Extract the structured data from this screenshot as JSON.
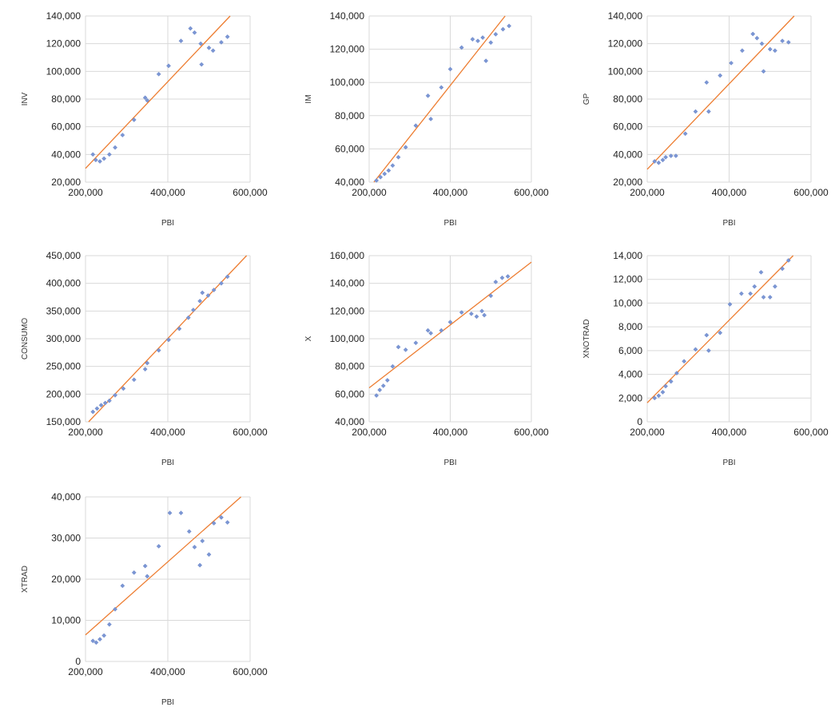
{
  "colors": {
    "points": "#7b96d4",
    "trend": "#ed7d31",
    "grid": "#d9d9d9"
  },
  "chart_data": [
    {
      "type": "scatter",
      "title": "",
      "xlabel": "PBI",
      "ylabel": "INV",
      "xlim": [
        200000,
        600000
      ],
      "ylim": [
        20000,
        140000
      ],
      "xticks": [
        "200,000",
        "400,000",
        "600,000"
      ],
      "yticks": [
        "20,000",
        "40,000",
        "60,000",
        "80,000",
        "100,000",
        "120,000",
        "140,000"
      ],
      "grid": true,
      "trendline": true,
      "points": [
        [
          218000,
          40000
        ],
        [
          225000,
          36000
        ],
        [
          235000,
          35000
        ],
        [
          245000,
          37000
        ],
        [
          258000,
          40000
        ],
        [
          272000,
          45000
        ],
        [
          290000,
          54000
        ],
        [
          318000,
          65000
        ],
        [
          345000,
          81000
        ],
        [
          350000,
          79000
        ],
        [
          378000,
          98000
        ],
        [
          402000,
          104000
        ],
        [
          432000,
          122000
        ],
        [
          455000,
          131000
        ],
        [
          465000,
          128000
        ],
        [
          480000,
          120000
        ],
        [
          482000,
          105000
        ],
        [
          500000,
          117000
        ],
        [
          510000,
          115000
        ],
        [
          530000,
          121000
        ],
        [
          545000,
          125000
        ]
      ]
    },
    {
      "type": "scatter",
      "title": "",
      "xlabel": "PBI",
      "ylabel": "IM",
      "xlim": [
        200000,
        600000
      ],
      "ylim": [
        40000,
        140000
      ],
      "xticks": [
        "200,000",
        "400,000",
        "600,000"
      ],
      "yticks": [
        "40,000",
        "60,000",
        "80,000",
        "100,000",
        "120,000",
        "140,000"
      ],
      "grid": true,
      "trendline": true,
      "points": [
        [
          218000,
          41000
        ],
        [
          228000,
          43000
        ],
        [
          238000,
          45000
        ],
        [
          248000,
          47000
        ],
        [
          258000,
          50000
        ],
        [
          272000,
          55000
        ],
        [
          290000,
          61000
        ],
        [
          315000,
          74000
        ],
        [
          345000,
          92000
        ],
        [
          352000,
          78000
        ],
        [
          378000,
          97000
        ],
        [
          400000,
          108000
        ],
        [
          428000,
          121000
        ],
        [
          455000,
          126000
        ],
        [
          468000,
          125000
        ],
        [
          480000,
          127000
        ],
        [
          488000,
          113000
        ],
        [
          500000,
          124000
        ],
        [
          512000,
          129000
        ],
        [
          530000,
          132000
        ],
        [
          545000,
          134000
        ]
      ]
    },
    {
      "type": "scatter",
      "title": "",
      "xlabel": "PBI",
      "ylabel": "GP",
      "xlim": [
        200000,
        600000
      ],
      "ylim": [
        20000,
        140000
      ],
      "xticks": [
        "200,000",
        "400,000",
        "600,000"
      ],
      "yticks": [
        "20,000",
        "40,000",
        "60,000",
        "80,000",
        "100,000",
        "120,000",
        "140,000"
      ],
      "grid": true,
      "trendline": true,
      "points": [
        [
          218000,
          35000
        ],
        [
          228000,
          34000
        ],
        [
          238000,
          36000
        ],
        [
          245000,
          38000
        ],
        [
          258000,
          39000
        ],
        [
          270000,
          39000
        ],
        [
          293000,
          55000
        ],
        [
          318000,
          71000
        ],
        [
          345000,
          92000
        ],
        [
          350000,
          71000
        ],
        [
          378000,
          97000
        ],
        [
          405000,
          106000
        ],
        [
          432000,
          115000
        ],
        [
          458000,
          127000
        ],
        [
          468000,
          124000
        ],
        [
          480000,
          120000
        ],
        [
          484000,
          100000
        ],
        [
          500000,
          116000
        ],
        [
          512000,
          115000
        ],
        [
          530000,
          122000
        ],
        [
          545000,
          121000
        ]
      ]
    },
    {
      "type": "scatter",
      "title": "",
      "xlabel": "PBI",
      "ylabel": "CONSUMO",
      "xlim": [
        200000,
        600000
      ],
      "ylim": [
        150000,
        450000
      ],
      "xticks": [
        "200,000",
        "400,000",
        "600,000"
      ],
      "yticks": [
        "150,000",
        "200,000",
        "250,000",
        "300,000",
        "350,000",
        "400,000",
        "450,000"
      ],
      "grid": true,
      "trendline": true,
      "points": [
        [
          218000,
          168000
        ],
        [
          228000,
          174000
        ],
        [
          238000,
          180000
        ],
        [
          248000,
          184000
        ],
        [
          258000,
          188000
        ],
        [
          272000,
          198000
        ],
        [
          292000,
          210000
        ],
        [
          318000,
          226000
        ],
        [
          345000,
          245000
        ],
        [
          350000,
          256000
        ],
        [
          378000,
          279000
        ],
        [
          402000,
          298000
        ],
        [
          428000,
          318000
        ],
        [
          450000,
          338000
        ],
        [
          462000,
          352000
        ],
        [
          478000,
          368000
        ],
        [
          484000,
          383000
        ],
        [
          498000,
          378000
        ],
        [
          512000,
          388000
        ],
        [
          530000,
          400000
        ],
        [
          545000,
          412000
        ]
      ]
    },
    {
      "type": "scatter",
      "title": "",
      "xlabel": "PBI",
      "ylabel": "X",
      "xlim": [
        200000,
        600000
      ],
      "ylim": [
        40000,
        160000
      ],
      "xticks": [
        "200,000",
        "400,000",
        "600,000"
      ],
      "yticks": [
        "40,000",
        "60,000",
        "80,000",
        "100,000",
        "120,000",
        "140,000",
        "160,000"
      ],
      "grid": true,
      "trendline": true,
      "points": [
        [
          218000,
          59000
        ],
        [
          226000,
          63000
        ],
        [
          235000,
          66000
        ],
        [
          245000,
          70000
        ],
        [
          258000,
          80000
        ],
        [
          272000,
          94000
        ],
        [
          290000,
          92000
        ],
        [
          315000,
          97000
        ],
        [
          345000,
          106000
        ],
        [
          352000,
          104000
        ],
        [
          378000,
          106000
        ],
        [
          400000,
          112000
        ],
        [
          428000,
          119000
        ],
        [
          452000,
          118000
        ],
        [
          465000,
          116000
        ],
        [
          478000,
          120000
        ],
        [
          484000,
          117000
        ],
        [
          500000,
          131000
        ],
        [
          512000,
          141000
        ],
        [
          528000,
          144000
        ],
        [
          542000,
          145000
        ]
      ]
    },
    {
      "type": "scatter",
      "title": "",
      "xlabel": "PBI",
      "ylabel": "XNOTRAD",
      "xlim": [
        200000,
        600000
      ],
      "ylim": [
        0,
        14000
      ],
      "xticks": [
        "200,000",
        "400,000",
        "600,000"
      ],
      "yticks": [
        "0",
        "2,000",
        "4,000",
        "6,000",
        "8,000",
        "10,000",
        "12,000",
        "14,000"
      ],
      "grid": true,
      "trendline": true,
      "points": [
        [
          218000,
          2000
        ],
        [
          228000,
          2200
        ],
        [
          238000,
          2500
        ],
        [
          245000,
          3000
        ],
        [
          258000,
          3400
        ],
        [
          272000,
          4100
        ],
        [
          290000,
          5100
        ],
        [
          318000,
          6100
        ],
        [
          345000,
          7300
        ],
        [
          350000,
          6000
        ],
        [
          378000,
          7500
        ],
        [
          402000,
          9900
        ],
        [
          430000,
          10800
        ],
        [
          452000,
          10800
        ],
        [
          462000,
          11400
        ],
        [
          478000,
          12600
        ],
        [
          484000,
          10500
        ],
        [
          500000,
          10500
        ],
        [
          512000,
          11400
        ],
        [
          530000,
          12900
        ],
        [
          545000,
          13600
        ]
      ]
    },
    {
      "type": "scatter",
      "title": "",
      "xlabel": "PBI",
      "ylabel": "XTRAD",
      "xlim": [
        200000,
        600000
      ],
      "ylim": [
        0,
        40000
      ],
      "xticks": [
        "200,000",
        "400,000",
        "600,000"
      ],
      "yticks": [
        "0",
        "10,000",
        "20,000",
        "30,000",
        "40,000"
      ],
      "grid": true,
      "trendline": true,
      "points": [
        [
          218000,
          5000
        ],
        [
          226000,
          4600
        ],
        [
          235000,
          5400
        ],
        [
          245000,
          6300
        ],
        [
          258000,
          9000
        ],
        [
          272000,
          12700
        ],
        [
          290000,
          18400
        ],
        [
          318000,
          21600
        ],
        [
          345000,
          23200
        ],
        [
          350000,
          20700
        ],
        [
          378000,
          28000
        ],
        [
          405000,
          36100
        ],
        [
          432000,
          36100
        ],
        [
          452000,
          31600
        ],
        [
          465000,
          27800
        ],
        [
          478000,
          23400
        ],
        [
          484000,
          29300
        ],
        [
          500000,
          26000
        ],
        [
          512000,
          33600
        ],
        [
          530000,
          35000
        ],
        [
          545000,
          33800
        ]
      ]
    }
  ]
}
